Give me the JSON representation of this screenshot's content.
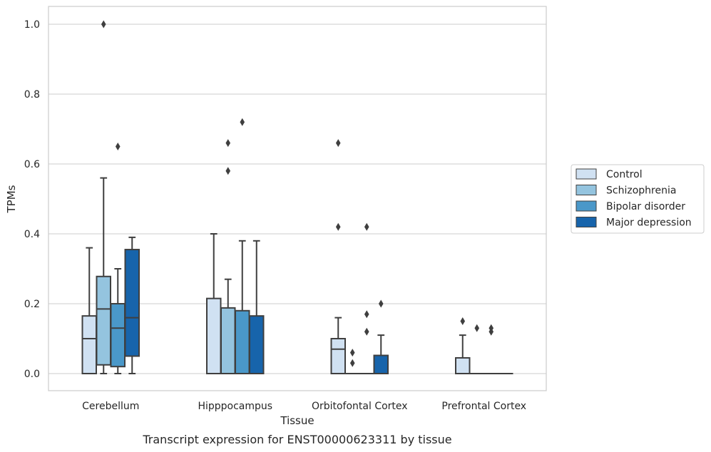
{
  "chart_data": {
    "type": "box",
    "caption": "Transcript expression for ENST00000623311 by tissue",
    "xlabel": "Tissue",
    "ylabel": "TPMs",
    "ylim": [
      -0.05,
      1.05
    ],
    "yticks": [
      0.0,
      0.2,
      0.4,
      0.6,
      0.8,
      1.0
    ],
    "ytick_labels": [
      "0.0",
      "0.2",
      "0.4",
      "0.6",
      "0.8",
      "1.0"
    ],
    "grid": true,
    "legend_position": "right",
    "categories": [
      "Cerebellum",
      "Hipppocampus",
      "Orbitofontal Cortex",
      "Prefrontal Cortex"
    ],
    "series": [
      {
        "name": "Control",
        "color": "#d0e1f2",
        "boxes": [
          {
            "whislo": 0.0,
            "q1": 0.0,
            "med": 0.1,
            "q3": 0.165,
            "whishi": 0.36,
            "fliers": []
          },
          {
            "whislo": 0.0,
            "q1": 0.0,
            "med": 0.0,
            "q3": 0.215,
            "whishi": 0.4,
            "fliers": []
          },
          {
            "whislo": 0.0,
            "q1": 0.0,
            "med": 0.07,
            "q3": 0.1,
            "whishi": 0.16,
            "fliers": [
              0.42,
              0.66
            ]
          },
          {
            "whislo": 0.0,
            "q1": 0.0,
            "med": 0.0,
            "q3": 0.045,
            "whishi": 0.11,
            "fliers": [
              0.15
            ]
          }
        ]
      },
      {
        "name": "Schizophrenia",
        "color": "#94c4df",
        "boxes": [
          {
            "whislo": 0.0,
            "q1": 0.025,
            "med": 0.185,
            "q3": 0.278,
            "whishi": 0.56,
            "fliers": [
              1.0
            ]
          },
          {
            "whislo": 0.0,
            "q1": 0.0,
            "med": 0.0,
            "q3": 0.188,
            "whishi": 0.27,
            "fliers": [
              0.58,
              0.66
            ]
          },
          {
            "whislo": 0.0,
            "q1": 0.0,
            "med": 0.0,
            "q3": 0.0,
            "whishi": 0.0,
            "fliers": [
              0.03,
              0.06
            ]
          },
          {
            "whislo": 0.0,
            "q1": 0.0,
            "med": 0.0,
            "q3": 0.0,
            "whishi": 0.0,
            "fliers": [
              0.13
            ]
          }
        ]
      },
      {
        "name": "Bipolar disorder",
        "color": "#4a98c9",
        "boxes": [
          {
            "whislo": 0.0,
            "q1": 0.02,
            "med": 0.13,
            "q3": 0.2,
            "whishi": 0.3,
            "fliers": [
              0.65
            ]
          },
          {
            "whislo": 0.0,
            "q1": 0.0,
            "med": 0.0,
            "q3": 0.18,
            "whishi": 0.38,
            "fliers": [
              0.72
            ]
          },
          {
            "whislo": 0.0,
            "q1": 0.0,
            "med": 0.0,
            "q3": 0.0,
            "whishi": 0.0,
            "fliers": [
              0.12,
              0.17,
              0.42
            ]
          },
          {
            "whislo": 0.0,
            "q1": 0.0,
            "med": 0.0,
            "q3": 0.0,
            "whishi": 0.0,
            "fliers": [
              0.12,
              0.13
            ]
          }
        ]
      },
      {
        "name": "Major depression",
        "color": "#1764ab",
        "boxes": [
          {
            "whislo": 0.0,
            "q1": 0.05,
            "med": 0.16,
            "q3": 0.355,
            "whishi": 0.39,
            "fliers": []
          },
          {
            "whislo": 0.0,
            "q1": 0.0,
            "med": 0.0,
            "q3": 0.165,
            "whishi": 0.38,
            "fliers": []
          },
          {
            "whislo": 0.0,
            "q1": 0.0,
            "med": 0.0,
            "q3": 0.052,
            "whishi": 0.11,
            "fliers": [
              0.2
            ]
          },
          {
            "whislo": 0.0,
            "q1": 0.0,
            "med": 0.0,
            "q3": 0.0,
            "whishi": 0.0,
            "fliers": []
          }
        ]
      }
    ],
    "colors": {
      "grid": "#cccccc",
      "frame": "#cccccc",
      "box_line": "#3f3f3f",
      "background": "#ffffff"
    }
  }
}
